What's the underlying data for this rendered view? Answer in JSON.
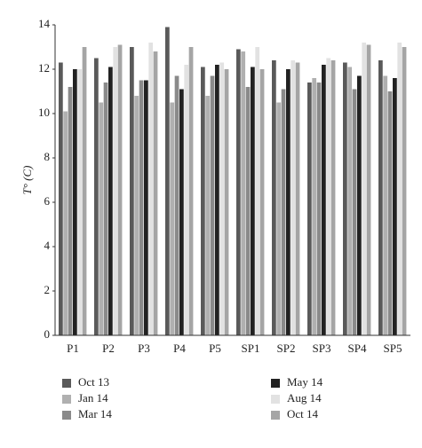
{
  "chart_data": {
    "type": "bar",
    "y_label": "T° (C)",
    "categories": [
      "P1",
      "P2",
      "P3",
      "P4",
      "P5",
      "SP1",
      "SP2",
      "SP3",
      "SP4",
      "SP5"
    ],
    "series": [
      {
        "name": "Oct 13",
        "color": "#5a5a5a",
        "values": [
          12.3,
          12.5,
          13.0,
          13.9,
          12.1,
          12.9,
          12.4,
          11.4,
          12.3,
          12.4
        ]
      },
      {
        "name": "Jan 14",
        "color": "#b0b0b0",
        "values": [
          10.1,
          10.5,
          10.8,
          10.5,
          10.8,
          12.8,
          10.5,
          11.6,
          12.1,
          11.7
        ]
      },
      {
        "name": "Mar 14",
        "color": "#8a8a8a",
        "values": [
          11.2,
          11.4,
          11.5,
          11.7,
          11.7,
          11.2,
          11.1,
          11.4,
          11.1,
          11.0
        ]
      },
      {
        "name": "May 14",
        "color": "#222222",
        "values": [
          12.0,
          12.1,
          11.5,
          11.1,
          12.2,
          12.1,
          12.0,
          12.2,
          11.7,
          11.6
        ]
      },
      {
        "name": "Aug 14",
        "color": "#e2e2e2",
        "values": [
          12.0,
          13.0,
          13.2,
          12.2,
          12.3,
          13.0,
          12.4,
          12.5,
          13.2,
          13.2
        ]
      },
      {
        "name": "Oct 14",
        "color": "#a5a5a5",
        "values": [
          13.0,
          13.1,
          12.8,
          13.0,
          12.0,
          12.0,
          12.3,
          12.4,
          13.1,
          13.0
        ]
      }
    ],
    "legend_order": [
      0,
      3,
      1,
      4,
      2,
      5
    ],
    "ylim": [
      0,
      14
    ],
    "yticks": [
      0,
      2,
      4,
      6,
      8,
      10,
      12,
      14
    ],
    "grid": false
  }
}
